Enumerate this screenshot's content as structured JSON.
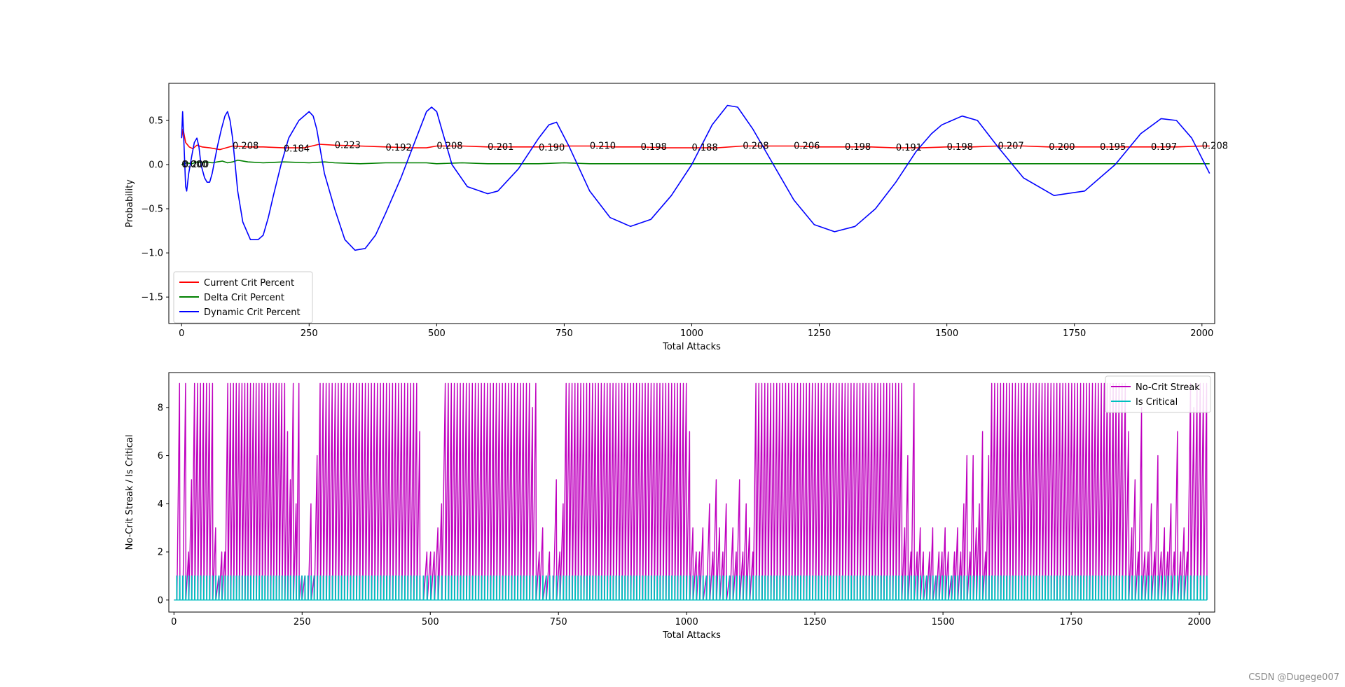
{
  "watermark": "CSDN @Dugege007",
  "colors": {
    "current": "#ff0000",
    "delta": "#008000",
    "dynamic": "#0000ff",
    "nocrit": "#bf00bf",
    "iscrit": "#00bfbf",
    "axis": "#000000"
  },
  "chart_data": [
    {
      "type": "line",
      "title": "",
      "xlabel": "Total Attacks",
      "ylabel": "Probability",
      "xlim": [
        -25,
        2025
      ],
      "ylim": [
        -1.8,
        0.92
      ],
      "xticks": [
        0,
        250,
        500,
        750,
        1000,
        1250,
        1500,
        1750,
        2000
      ],
      "yticks": [
        0.5,
        0.0,
        -0.5,
        -1.0,
        -1.5
      ],
      "ytick_labels": [
        "0.5",
        "0.0",
        "−0.5",
        "−1.0",
        "−1.5"
      ],
      "legend_position": "lower-left",
      "series": [
        {
          "name": "Current Crit Percent",
          "color": "#ff0000",
          "x": [
            0,
            3,
            8,
            15,
            22,
            30,
            40,
            55,
            75,
            100,
            130,
            160,
            200,
            240,
            270,
            300,
            350,
            400,
            450,
            480,
            500,
            550,
            600,
            650,
            700,
            750,
            800,
            850,
            900,
            950,
            1000,
            1050,
            1100,
            1150,
            1200,
            1250,
            1300,
            1350,
            1400,
            1450,
            1500,
            1550,
            1600,
            1650,
            1700,
            1750,
            1800,
            1850,
            1900,
            1950,
            2000,
            2015
          ],
          "values": [
            0.3,
            0.4,
            0.25,
            0.2,
            0.18,
            0.22,
            0.2,
            0.19,
            0.17,
            0.21,
            0.2,
            0.2,
            0.19,
            0.19,
            0.23,
            0.22,
            0.21,
            0.2,
            0.19,
            0.19,
            0.21,
            0.21,
            0.2,
            0.2,
            0.2,
            0.21,
            0.21,
            0.2,
            0.2,
            0.19,
            0.19,
            0.19,
            0.21,
            0.21,
            0.21,
            0.2,
            0.2,
            0.2,
            0.19,
            0.19,
            0.2,
            0.2,
            0.21,
            0.21,
            0.2,
            0.2,
            0.2,
            0.2,
            0.2,
            0.2,
            0.21,
            0.21
          ]
        },
        {
          "name": "Delta Crit Percent",
          "color": "#008000",
          "x": [
            0,
            10,
            20,
            30,
            40,
            50,
            60,
            70,
            80,
            90,
            100,
            110,
            130,
            160,
            200,
            250,
            280,
            300,
            350,
            400,
            450,
            480,
            500,
            550,
            600,
            700,
            750,
            800,
            900,
            1000,
            1100,
            1200,
            1300,
            1400,
            1500,
            1600,
            1700,
            1800,
            1900,
            2000,
            2015
          ],
          "values": [
            0.0,
            0.02,
            0.01,
            0.03,
            0.02,
            0.03,
            0.02,
            0.03,
            0.04,
            0.02,
            0.03,
            0.05,
            0.03,
            0.02,
            0.03,
            0.02,
            0.03,
            0.02,
            0.01,
            0.02,
            0.02,
            0.02,
            0.01,
            0.02,
            0.01,
            0.01,
            0.02,
            0.01,
            0.01,
            0.01,
            0.01,
            0.01,
            0.01,
            0.01,
            0.01,
            0.01,
            0.01,
            0.01,
            0.01,
            0.01,
            0.01
          ]
        },
        {
          "name": "Dynamic Crit Percent",
          "color": "#0000ff",
          "x": [
            0,
            2,
            5,
            8,
            10,
            14,
            20,
            25,
            30,
            34,
            38,
            45,
            50,
            55,
            60,
            65,
            70,
            78,
            85,
            90,
            95,
            100,
            105,
            110,
            120,
            135,
            150,
            160,
            170,
            180,
            195,
            210,
            230,
            250,
            258,
            265,
            280,
            300,
            320,
            340,
            360,
            380,
            400,
            430,
            460,
            480,
            490,
            500,
            510,
            530,
            560,
            600,
            620,
            660,
            700,
            720,
            735,
            760,
            800,
            840,
            880,
            920,
            960,
            1000,
            1040,
            1070,
            1090,
            1120,
            1160,
            1200,
            1240,
            1280,
            1320,
            1360,
            1400,
            1440,
            1470,
            1490,
            1510,
            1530,
            1560,
            1600,
            1650,
            1710,
            1770,
            1830,
            1880,
            1920,
            1950,
            1980,
            2015
          ],
          "values": [
            0.3,
            0.6,
            0.2,
            -0.25,
            -0.3,
            -0.1,
            0.1,
            0.25,
            0.3,
            0.2,
            0.0,
            -0.15,
            -0.2,
            -0.2,
            -0.1,
            0.05,
            0.2,
            0.4,
            0.55,
            0.6,
            0.5,
            0.3,
            0.0,
            -0.3,
            -0.65,
            -0.85,
            -0.85,
            -0.8,
            -0.6,
            -0.35,
            0.0,
            0.3,
            0.5,
            0.6,
            0.55,
            0.4,
            -0.1,
            -0.5,
            -0.85,
            -0.97,
            -0.95,
            -0.8,
            -0.55,
            -0.15,
            0.3,
            0.6,
            0.65,
            0.6,
            0.4,
            0.0,
            -0.25,
            -0.33,
            -0.3,
            -0.05,
            0.3,
            0.45,
            0.48,
            0.2,
            -0.3,
            -0.6,
            -0.7,
            -0.62,
            -0.35,
            0.0,
            0.45,
            0.67,
            0.65,
            0.4,
            0.0,
            -0.4,
            -0.68,
            -0.76,
            -0.7,
            -0.5,
            -0.2,
            0.15,
            0.35,
            0.45,
            0.5,
            0.55,
            0.5,
            0.2,
            -0.15,
            -0.35,
            -0.3,
            0.0,
            0.35,
            0.52,
            0.5,
            0.3,
            -0.1
          ]
        }
      ],
      "annotations": [
        {
          "x": 0,
          "y": 0.0,
          "text": "0.000"
        },
        {
          "x": 5,
          "y": 0.0,
          "text": "0.200"
        },
        {
          "x": 200,
          "y": 0.21,
          "text": "0.208"
        },
        {
          "x": 400,
          "y": 0.18,
          "text": "0.184"
        },
        {
          "x": 600,
          "y": 0.22,
          "text": "0.223"
        },
        {
          "x": 800,
          "y": 0.19,
          "text": "0.192"
        },
        {
          "x": 1000,
          "y": 0.21,
          "text": "0.208"
        },
        {
          "x": 1200,
          "y": 0.2,
          "text": "0.201"
        },
        {
          "x": 1400,
          "y": 0.19,
          "text": "0.190"
        },
        {
          "x": 1600,
          "y": 0.21,
          "text": "0.210"
        },
        {
          "x": 1800,
          "y": 0.2,
          "text": "0.198"
        },
        {
          "x": 2000,
          "y": 0.19,
          "text": "0.188"
        },
        {
          "x": 2200,
          "y": 0.21,
          "text": "0.208"
        },
        {
          "x": 2400,
          "y": 0.21,
          "text": "0.206"
        },
        {
          "x": 2600,
          "y": 0.2,
          "text": "0.198"
        },
        {
          "x": 2800,
          "y": 0.19,
          "text": "0.191"
        },
        {
          "x": 3000,
          "y": 0.2,
          "text": "0.198"
        },
        {
          "x": 3200,
          "y": 0.21,
          "text": "0.207"
        },
        {
          "x": 3400,
          "y": 0.2,
          "text": "0.200"
        },
        {
          "x": 3600,
          "y": 0.2,
          "text": "0.195"
        },
        {
          "x": 3800,
          "y": 0.2,
          "text": "0.197"
        },
        {
          "x": 4000,
          "y": 0.21,
          "text": "0.208"
        }
      ],
      "annotation_x_scale": 0.5
    },
    {
      "type": "line",
      "title": "",
      "xlabel": "Total Attacks",
      "ylabel": "No-Crit Streak / Is Critical",
      "xlim": [
        -10,
        2030
      ],
      "ylim": [
        -0.5,
        9.45
      ],
      "xticks": [
        0,
        250,
        500,
        750,
        1000,
        1250,
        1500,
        1750,
        2000
      ],
      "yticks": [
        0,
        2,
        4,
        6,
        8
      ],
      "legend_position": "top-right",
      "max_streak": 9,
      "series": [
        {
          "name": "No-Crit Streak",
          "color": "#bf00bf"
        },
        {
          "name": "Is Critical",
          "color": "#00bfbf"
        }
      ],
      "streak_regions": [
        {
          "from": 0,
          "to": 70,
          "peaks": [
            0,
            9,
            0,
            9,
            2,
            5,
            9,
            9,
            9,
            9,
            9,
            9
          ]
        },
        {
          "from": 70,
          "to": 100,
          "peaks": [
            9,
            3,
            1,
            2,
            2
          ]
        },
        {
          "from": 100,
          "to": 250,
          "peaks": [
            9,
            9,
            9,
            9,
            9,
            9,
            9,
            9,
            9,
            9,
            9,
            9,
            9,
            9,
            9,
            9,
            9,
            9,
            9,
            9,
            9,
            7,
            5,
            9,
            4,
            9,
            1
          ]
        },
        {
          "from": 250,
          "to": 280,
          "peaks": [
            1,
            0,
            4,
            1,
            6
          ]
        },
        {
          "from": 280,
          "to": 480,
          "peaks": [
            9,
            9,
            9,
            9,
            9,
            9,
            9,
            9,
            9,
            9,
            9,
            9,
            9,
            9,
            9,
            9,
            9,
            9,
            9,
            9,
            9,
            9,
            9,
            9,
            9,
            9,
            9,
            9,
            9,
            9,
            9,
            9,
            9,
            7
          ]
        },
        {
          "from": 480,
          "to": 530,
          "peaks": [
            0,
            2,
            2,
            2,
            3,
            4,
            9
          ]
        },
        {
          "from": 530,
          "to": 700,
          "peaks": [
            9,
            9,
            9,
            9,
            9,
            9,
            9,
            9,
            9,
            9,
            9,
            9,
            9,
            9,
            9,
            9,
            9,
            9,
            9,
            9,
            9,
            9,
            9,
            9,
            9,
            9,
            9,
            9,
            8
          ]
        },
        {
          "from": 700,
          "to": 760,
          "peaks": [
            9,
            2,
            3,
            1,
            2,
            0,
            5,
            2,
            4
          ]
        },
        {
          "from": 760,
          "to": 1000,
          "peaks": [
            9,
            9,
            9,
            9,
            9,
            9,
            9,
            9,
            9,
            9,
            9,
            9,
            9,
            9,
            9,
            9,
            9,
            9,
            9,
            9,
            9,
            9,
            9,
            9,
            9,
            9,
            9,
            9,
            9,
            9,
            9,
            9,
            9,
            9,
            9,
            9,
            9,
            9,
            9,
            9,
            9,
            9
          ]
        },
        {
          "from": 1000,
          "to": 1130,
          "peaks": [
            7,
            3,
            2,
            2,
            3,
            1,
            4,
            2,
            5,
            3,
            2,
            4,
            1,
            3,
            2,
            5,
            2,
            4,
            3,
            2
          ]
        },
        {
          "from": 1130,
          "to": 1420,
          "peaks": [
            9,
            9,
            9,
            9,
            9,
            9,
            9,
            9,
            9,
            9,
            9,
            9,
            9,
            9,
            9,
            9,
            9,
            9,
            9,
            9,
            9,
            9,
            9,
            9,
            9,
            9,
            9,
            9,
            9,
            9,
            9,
            9,
            9,
            9,
            9,
            9,
            9,
            9,
            9,
            9,
            9,
            9,
            9,
            9,
            9,
            9,
            9,
            9,
            9,
            9
          ]
        },
        {
          "from": 1420,
          "to": 1590,
          "peaks": [
            3,
            6,
            2,
            9,
            2,
            3,
            2,
            1,
            2,
            3,
            1,
            2,
            2,
            3,
            2,
            1,
            2,
            3,
            2,
            4,
            6,
            2,
            6,
            3,
            4,
            7,
            2,
            6
          ]
        },
        {
          "from": 1590,
          "to": 1850,
          "peaks": [
            9,
            9,
            9,
            9,
            9,
            9,
            9,
            9,
            9,
            9,
            9,
            9,
            9,
            9,
            9,
            9,
            9,
            9,
            9,
            9,
            9,
            9,
            9,
            9,
            9,
            9,
            9,
            9,
            9,
            9,
            9,
            9,
            9,
            9,
            9,
            9,
            9,
            9,
            9,
            9,
            9,
            9,
            9,
            9,
            9
          ]
        },
        {
          "from": 1850,
          "to": 1990,
          "peaks": [
            9,
            7,
            3,
            5,
            2,
            8,
            2,
            2,
            4,
            2,
            6,
            2,
            3,
            2,
            4,
            2,
            7,
            2,
            3,
            2,
            9,
            8
          ]
        },
        {
          "from": 1990,
          "to": 2015,
          "peaks": [
            9,
            9,
            9,
            9
          ]
        }
      ]
    }
  ]
}
